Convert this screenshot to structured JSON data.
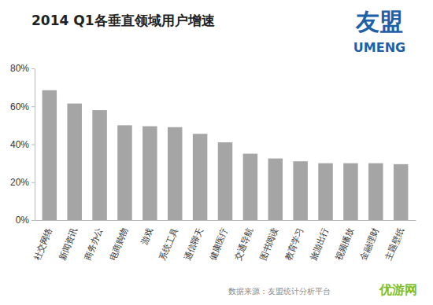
{
  "chart_data": {
    "type": "bar",
    "title": "2014 Q1各垂直领域用户增速",
    "categories": [
      "社交网络",
      "新闻资讯",
      "商务办公",
      "电商购物",
      "游戏",
      "系统工具",
      "通信聊天",
      "健康医疗",
      "交通导航",
      "图书阅读",
      "教育学习",
      "旅游出行",
      "视频播放",
      "金融理财",
      "主题壁纸"
    ],
    "values": [
      68.5,
      61.5,
      58,
      50,
      49.5,
      49,
      45.5,
      41,
      35,
      32.5,
      31,
      30,
      30,
      30,
      29.5
    ],
    "color": "#a5a5a5",
    "ylim": [
      0,
      80
    ],
    "yticks": [
      {
        "value": 0,
        "label": "0%"
      },
      {
        "value": 20,
        "label": "20%"
      },
      {
        "value": 40,
        "label": "40%"
      },
      {
        "value": 60,
        "label": "60%"
      },
      {
        "value": 80,
        "label": "80%"
      }
    ],
    "grid": false,
    "annotations": [
      "数据来源：友盟统计分析平台",
      "友盟",
      "UMENG",
      "优游网"
    ]
  }
}
